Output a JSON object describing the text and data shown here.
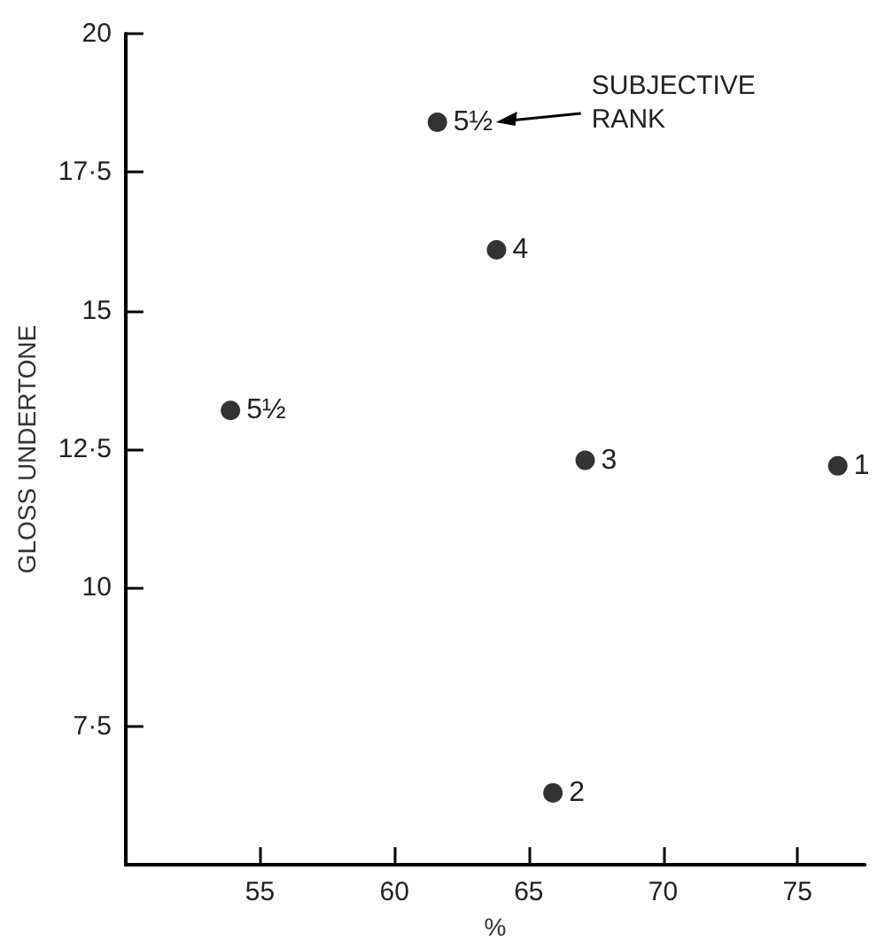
{
  "chart_data": {
    "type": "scatter",
    "xlabel": "%",
    "ylabel": "GLOSS UNDERTONE",
    "x": [
      53.9,
      61.6,
      63.8,
      67.1,
      65.9,
      76.5
    ],
    "values": [
      13.2,
      18.4,
      16.1,
      12.3,
      6.3,
      12.2
    ],
    "color": "#000000",
    "marker": "circle",
    "grid": false,
    "xlim": [
      50,
      77.5
    ],
    "xticks": [
      55,
      60,
      65,
      70,
      75
    ],
    "ylim": [
      5,
      20
    ],
    "yticks": [
      {
        "value": 7.5,
        "label": "7·5"
      },
      10,
      {
        "value": 12.5,
        "label": "12·5"
      },
      15,
      {
        "value": 17.5,
        "label": "17·5"
      },
      20
    ],
    "annotations": [
      {
        "text": "5½",
        "x": 53.9,
        "y": 13.2
      },
      {
        "text": "5½",
        "x": 61.6,
        "y": 18.4
      },
      {
        "text": "4",
        "x": 63.8,
        "y": 16.1
      },
      {
        "text": "3",
        "x": 67.1,
        "y": 12.3
      },
      {
        "text": "2",
        "x": 65.9,
        "y": 6.3
      },
      {
        "text": "1",
        "x": 76.5,
        "y": 12.2
      },
      "SUBJECTIVE RANK"
    ]
  }
}
